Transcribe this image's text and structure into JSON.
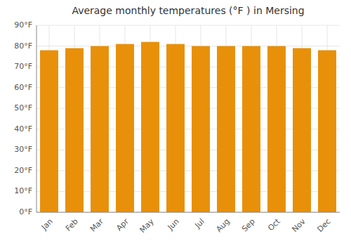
{
  "chart_data": {
    "type": "bar",
    "title": "Average monthly temperatures (°F ) in Mersing",
    "categories": [
      "Jan",
      "Feb",
      "Mar",
      "Apr",
      "May",
      "Jun",
      "Jul",
      "Aug",
      "Sep",
      "Oct",
      "Nov",
      "Dec"
    ],
    "values": [
      78,
      79,
      80,
      81,
      82,
      81,
      80,
      80,
      80,
      80,
      79,
      78
    ],
    "color": "#E8900A",
    "ylim": [
      0,
      90
    ],
    "yticks": [
      {
        "value": 0,
        "label": "0°F"
      },
      {
        "value": 10,
        "label": "10°F"
      },
      {
        "value": 20,
        "label": "20°F"
      },
      {
        "value": 30,
        "label": "30°F"
      },
      {
        "value": 40,
        "label": "40°F"
      },
      {
        "value": 50,
        "label": "50°F"
      },
      {
        "value": 60,
        "label": "60°F"
      },
      {
        "value": 70,
        "label": "70°F"
      },
      {
        "value": 80,
        "label": "80°F"
      },
      {
        "value": 90,
        "label": "90°F"
      }
    ],
    "grid": true
  }
}
